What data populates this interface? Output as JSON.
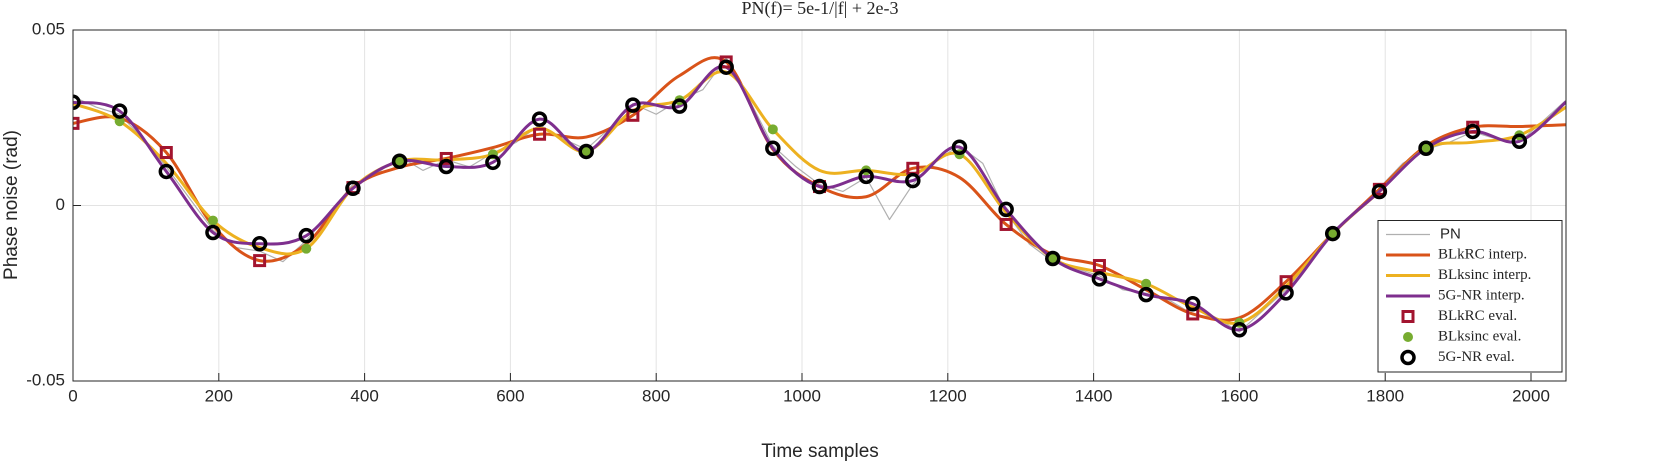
{
  "chart_data": {
    "type": "line",
    "title": "PN(f)= 5e-1/|f| + 2e-3",
    "xlabel": "Time samples",
    "ylabel": "Phase noise (rad)",
    "xlim": [
      0,
      2048
    ],
    "ylim": [
      -0.05,
      0.05
    ],
    "xticks": [
      0,
      200,
      400,
      600,
      800,
      1000,
      1200,
      1400,
      1600,
      1800,
      2000
    ],
    "yticks": [
      -0.05,
      0,
      0.05
    ],
    "grid": true,
    "legend": "lower right",
    "series": [
      {
        "name": "PN",
        "color": "#b0b0b0",
        "line": true,
        "smooth": false,
        "width": 1.2,
        "x": [
          0,
          32,
          64,
          96,
          128,
          160,
          192,
          224,
          256,
          288,
          320,
          352,
          384,
          416,
          448,
          480,
          512,
          544,
          576,
          608,
          640,
          672,
          704,
          736,
          768,
          800,
          832,
          864,
          896,
          928,
          960,
          992,
          1024,
          1056,
          1088,
          1120,
          1152,
          1184,
          1216,
          1248,
          1280,
          1312,
          1344,
          1376,
          1408,
          1440,
          1472,
          1504,
          1536,
          1568,
          1600,
          1632,
          1664,
          1696,
          1728,
          1760,
          1792,
          1824,
          1856,
          1888,
          1920,
          1952,
          1984,
          2016,
          2048
        ],
        "values": [
          0.031,
          0.028,
          0.026,
          0.019,
          0.011,
          0.002,
          -0.007,
          -0.012,
          -0.013,
          -0.016,
          -0.01,
          -0.002,
          0.006,
          0.009,
          0.014,
          0.01,
          0.013,
          0.011,
          0.015,
          0.018,
          0.023,
          0.019,
          0.016,
          0.022,
          0.029,
          0.026,
          0.03,
          0.033,
          0.042,
          0.03,
          0.017,
          0.011,
          0.006,
          0.004,
          0.008,
          -0.004,
          0.006,
          0.013,
          0.017,
          0.012,
          -0.002,
          -0.011,
          -0.016,
          -0.018,
          -0.02,
          -0.024,
          -0.025,
          -0.027,
          -0.031,
          -0.032,
          -0.036,
          -0.03,
          -0.024,
          -0.016,
          -0.008,
          -0.002,
          0.005,
          0.012,
          0.016,
          0.018,
          0.021,
          0.019,
          0.018,
          0.024,
          0.03
        ]
      },
      {
        "name": "BLkRC interp.",
        "color": "#d95319",
        "line": true,
        "smooth": true,
        "width": 3,
        "x": [
          0,
          64,
          128,
          192,
          256,
          320,
          384,
          448,
          512,
          576,
          640,
          704,
          768,
          832,
          896,
          960,
          1024,
          1088,
          1152,
          1216,
          1280,
          1344,
          1408,
          1472,
          1536,
          1600,
          1664,
          1728,
          1792,
          1856,
          1920,
          1984,
          2048
        ],
        "values": [
          0.0234,
          0.0249,
          0.0151,
          -0.0057,
          -0.0157,
          -0.011,
          0.0051,
          0.0109,
          0.0134,
          0.0165,
          0.0203,
          0.0195,
          0.0257,
          0.037,
          0.0409,
          0.016,
          0.0054,
          0.0025,
          0.0106,
          0.008,
          -0.0054,
          -0.014,
          -0.0171,
          -0.024,
          -0.0309,
          -0.032,
          -0.0217,
          -0.008,
          0.0046,
          0.017,
          0.0223,
          0.0225,
          0.023
        ]
      },
      {
        "name": "BLksinc interp.",
        "color": "#edb120",
        "line": true,
        "smooth": true,
        "width": 3,
        "x": [
          0,
          64,
          128,
          192,
          256,
          320,
          384,
          448,
          512,
          576,
          640,
          704,
          768,
          832,
          896,
          960,
          1024,
          1088,
          1152,
          1216,
          1280,
          1344,
          1408,
          1472,
          1536,
          1600,
          1664,
          1728,
          1792,
          1856,
          1920,
          1984,
          2048
        ],
        "values": [
          0.029,
          0.024,
          0.012,
          -0.0043,
          -0.012,
          -0.0123,
          0.005,
          0.0126,
          0.013,
          0.0146,
          0.022,
          0.0154,
          0.027,
          0.03,
          0.038,
          0.0217,
          0.01,
          0.01,
          0.009,
          0.0146,
          -0.002,
          -0.0151,
          -0.019,
          -0.0223,
          -0.029,
          -0.0334,
          -0.023,
          -0.008,
          0.004,
          0.0163,
          0.018,
          0.02,
          0.028
        ]
      },
      {
        "name": "5G-NR interp.",
        "color": "#7e2f8e",
        "line": true,
        "smooth": true,
        "width": 3,
        "x": [
          0,
          64,
          128,
          192,
          256,
          320,
          384,
          448,
          512,
          576,
          640,
          704,
          768,
          832,
          896,
          960,
          1024,
          1088,
          1152,
          1216,
          1280,
          1344,
          1408,
          1472,
          1536,
          1600,
          1664,
          1728,
          1792,
          1856,
          1920,
          1984,
          2048
        ],
        "values": [
          0.0294,
          0.0269,
          0.0097,
          -0.0077,
          -0.0109,
          -0.0086,
          0.0049,
          0.0126,
          0.0111,
          0.0123,
          0.0246,
          0.0154,
          0.0286,
          0.0283,
          0.0394,
          0.0163,
          0.0054,
          0.0083,
          0.0071,
          0.0166,
          -0.0011,
          -0.0151,
          -0.0209,
          -0.0254,
          -0.028,
          -0.0354,
          -0.0249,
          -0.008,
          0.004,
          0.0163,
          0.0211,
          0.0183,
          0.0295
        ]
      },
      {
        "name": "BLkRC eval.",
        "color": "#a2142f",
        "line": false,
        "marker": "square",
        "x": [
          0,
          128,
          256,
          384,
          512,
          640,
          768,
          896,
          1024,
          1152,
          1280,
          1408,
          1536,
          1664,
          1792,
          1920
        ],
        "values": [
          0.0234,
          0.0151,
          -0.0157,
          0.0051,
          0.0134,
          0.0203,
          0.0257,
          0.0409,
          0.0054,
          0.0106,
          -0.0054,
          -0.0171,
          -0.0309,
          -0.0217,
          0.0046,
          0.0223
        ]
      },
      {
        "name": "BLksinc eval.",
        "color": "#77ac30",
        "line": false,
        "marker": "dot",
        "x": [
          64,
          192,
          320,
          448,
          576,
          704,
          832,
          960,
          1088,
          1216,
          1344,
          1472,
          1600,
          1728,
          1856,
          1984
        ],
        "values": [
          0.024,
          -0.0043,
          -0.0123,
          0.0126,
          0.0146,
          0.0154,
          0.03,
          0.0217,
          0.01,
          0.0146,
          -0.0151,
          -0.0223,
          -0.0334,
          -0.008,
          0.0163,
          0.02
        ]
      },
      {
        "name": "5G-NR eval.",
        "color": "#000000",
        "line": false,
        "marker": "circle",
        "x": [
          0,
          64,
          128,
          192,
          256,
          320,
          384,
          448,
          512,
          576,
          640,
          704,
          768,
          832,
          896,
          960,
          1024,
          1088,
          1152,
          1216,
          1280,
          1344,
          1408,
          1472,
          1536,
          1600,
          1664,
          1728,
          1792,
          1856,
          1920,
          1984
        ],
        "values": [
          0.0294,
          0.0269,
          0.0097,
          -0.0077,
          -0.0109,
          -0.0086,
          0.0049,
          0.0126,
          0.0111,
          0.0123,
          0.0246,
          0.0154,
          0.0286,
          0.0283,
          0.0394,
          0.0163,
          0.0054,
          0.0083,
          0.0071,
          0.0166,
          -0.0011,
          -0.0151,
          -0.0209,
          -0.0254,
          -0.028,
          -0.0354,
          -0.0249,
          -0.008,
          0.004,
          0.0163,
          0.0211,
          0.0183
        ]
      }
    ]
  }
}
